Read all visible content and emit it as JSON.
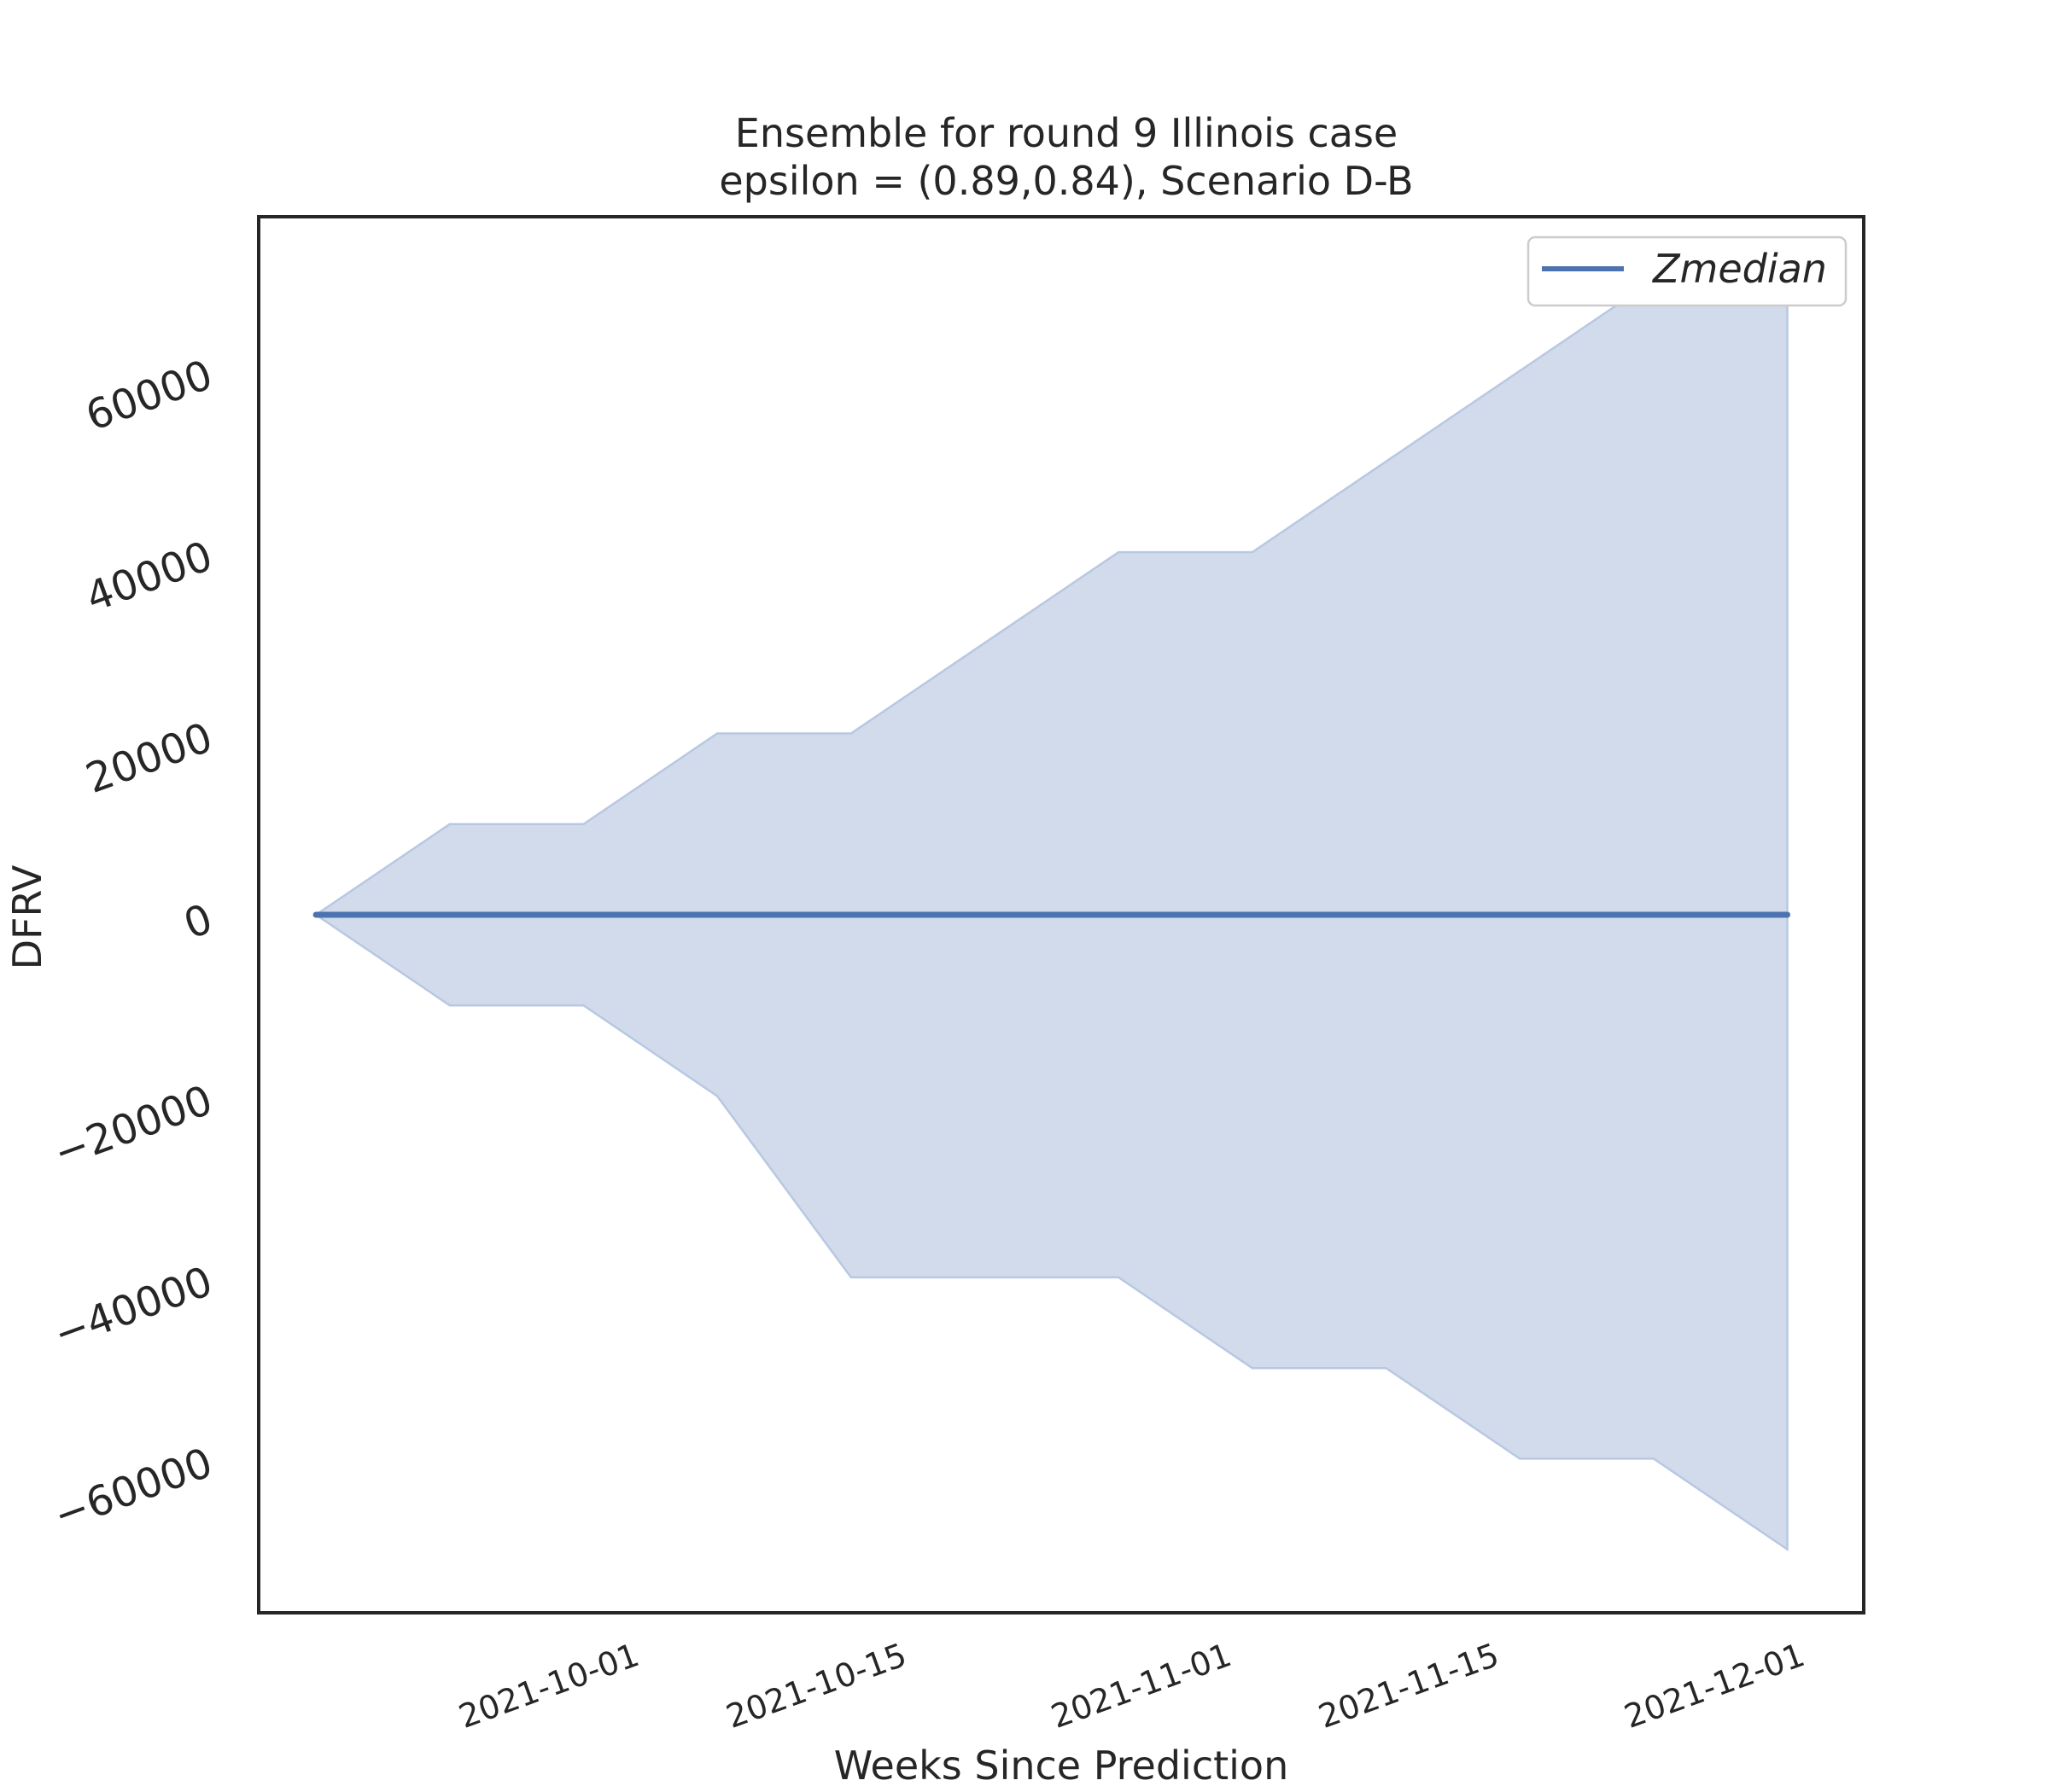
{
  "chart_data": {
    "type": "area",
    "title_line1": "Ensemble for round 9 Illinois  case",
    "title_line2": "epsilon = (0.89,0.84), Scenario D-B",
    "xlabel": "Weeks Since Prediction",
    "ylabel": "DFRV",
    "x": [
      "2021-09-18",
      "2021-09-25",
      "2021-10-02",
      "2021-10-09",
      "2021-10-16",
      "2021-10-23",
      "2021-10-30",
      "2021-11-06",
      "2021-11-13",
      "2021-11-20",
      "2021-11-27",
      "2021-12-04"
    ],
    "series": [
      {
        "name": "Zmedian",
        "values": [
          0,
          0,
          0,
          0,
          0,
          0,
          0,
          0,
          0,
          0,
          0,
          0
        ]
      }
    ],
    "band": {
      "upper": [
        0,
        10000,
        10000,
        20000,
        20000,
        30000,
        40000,
        40000,
        50000,
        60000,
        70000,
        70000
      ],
      "lower": [
        0,
        -10000,
        -10000,
        -20000,
        -40000,
        -40000,
        -40000,
        -50000,
        -50000,
        -60000,
        -60000,
        -70000
      ]
    },
    "xlim": [
      "2021-09-15",
      "2021-12-08"
    ],
    "ylim": [
      -77000,
      77000
    ],
    "yticks": [
      -60000,
      -40000,
      -20000,
      0,
      20000,
      40000,
      60000
    ],
    "ytick_labels": [
      "−60000",
      "−40000",
      "−20000",
      "0",
      "20000",
      "40000",
      "60000"
    ],
    "xticks": [
      "2021-10-01",
      "2021-10-15",
      "2021-11-01",
      "2021-11-15",
      "2021-12-01"
    ],
    "legend": {
      "entries": [
        "Zmedian"
      ],
      "location": "upper right"
    },
    "grid": false,
    "colors": {
      "line": "#4c72b0",
      "band": "#d1dbeb",
      "band_edge": "#b8c8e2",
      "frame": "#262626",
      "text": "#262626"
    }
  }
}
